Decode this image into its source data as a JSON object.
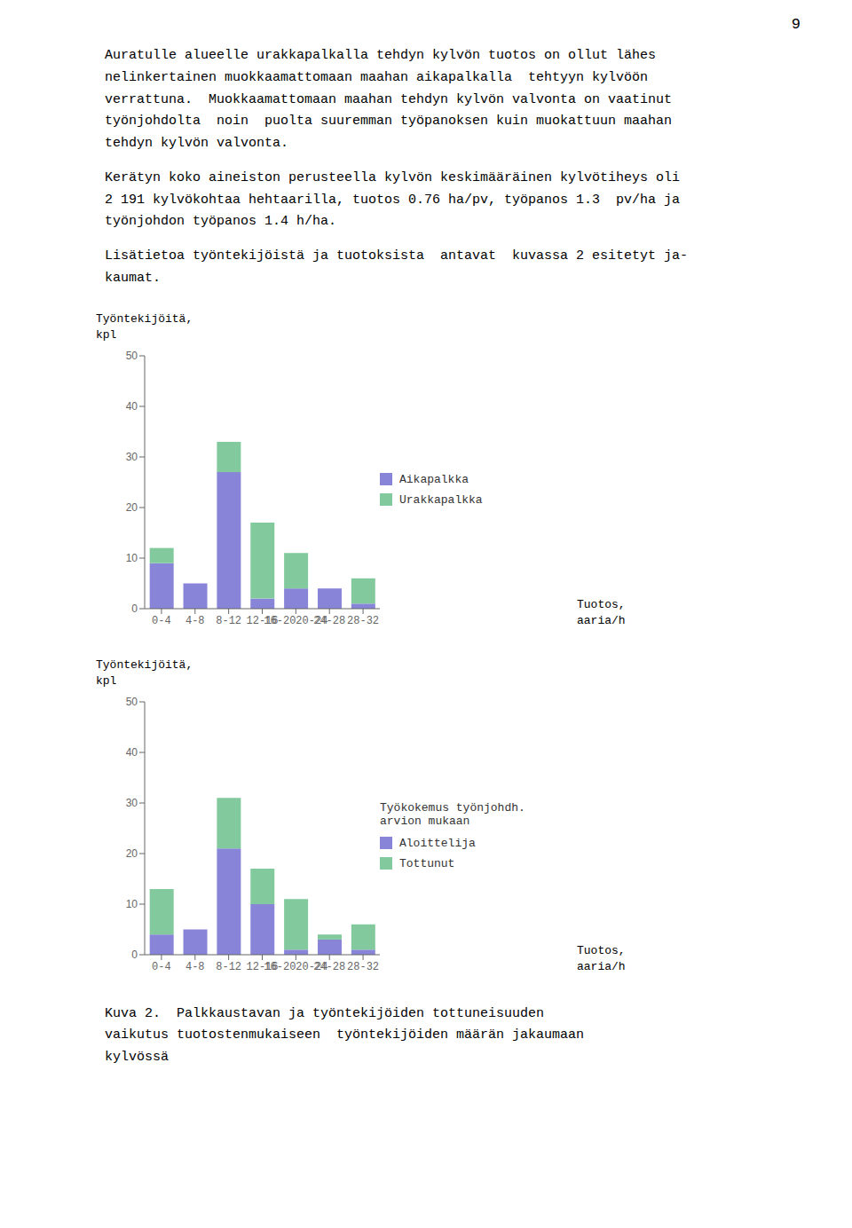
{
  "page_number": "9",
  "paragraphs": [
    "Auratulle alueelle urakkapalkalla tehdyn kylvön tuotos on ollut lähes\nnelinkertainen muokkaamattomaan maahan aikapalkalla  tehtyyn kylvöön\nverrattuna.  Muokkaamattomaan maahan tehdyn kylvön valvonta on vaatinut\ntyönjohdolta  noin  puolta suuremman työpanoksen kuin muokattuun maahan\ntehdyn kylvön valvonta.",
    "Kerätyn koko aineiston perusteella kylvön keskimääräinen kylvötiheys oli\n2 191 kylvökohtaa hehtaarilla, tuotos 0.76 ha/pv, työpanos 1.3  pv/ha ja\ntyönjohdon työpanos 1.4 h/ha.",
    "Lisätietoa työntekijöistä ja tuotoksista  antavat  kuvassa 2 esitetyt ja-\nkaumat."
  ],
  "caption": "Kuva 2.  Palkkaustavan ja työntekijöiden tottuneisuuden\nvaikutus tuotostenmukaiseen  työntekijöiden määrän jakaumaan\nkylvössä",
  "chart_data": [
    {
      "type": "bar",
      "stacked": true,
      "grid": false,
      "legend": "right",
      "ylabel": "Työntekijöitä,\nkpl",
      "xlabel": "Tuotos,\naaria/h",
      "categories": [
        "0-4",
        "4-8",
        "8-12",
        "12-16",
        "16-2020-24",
        "24-28",
        "28-32"
      ],
      "series": [
        {
          "name": "Aikapalkka",
          "color": "#8884d8",
          "values": [
            9,
            5,
            27,
            2,
            4,
            4,
            1
          ]
        },
        {
          "name": "Urakkapalkka",
          "color": "#82ca9d",
          "values": [
            3,
            0,
            6,
            15,
            7,
            0,
            5
          ]
        }
      ],
      "ylim": [
        0,
        50
      ],
      "yticks": [
        0,
        10,
        20,
        30,
        40,
        50
      ]
    },
    {
      "type": "bar",
      "stacked": true,
      "grid": false,
      "legend": "right",
      "legend_title": "Työkokemus työnjohdh.\narvion mukaan",
      "ylabel": "Työntekijöitä,\nkpl",
      "xlabel": "Tuotos,\naaria/h",
      "categories": [
        "0-4",
        "4-8",
        "8-12",
        "12-16",
        "16-2020-24",
        "24-28",
        "28-32"
      ],
      "series": [
        {
          "name": "Aloittelija",
          "color": "#8884d8",
          "values": [
            4,
            5,
            21,
            10,
            1,
            3,
            1
          ]
        },
        {
          "name": "Tottunut",
          "color": "#82ca9d",
          "values": [
            9,
            0,
            10,
            7,
            10,
            1,
            5
          ]
        }
      ],
      "ylim": [
        0,
        50
      ],
      "yticks": [
        0,
        10,
        20,
        30,
        40,
        50
      ]
    }
  ]
}
